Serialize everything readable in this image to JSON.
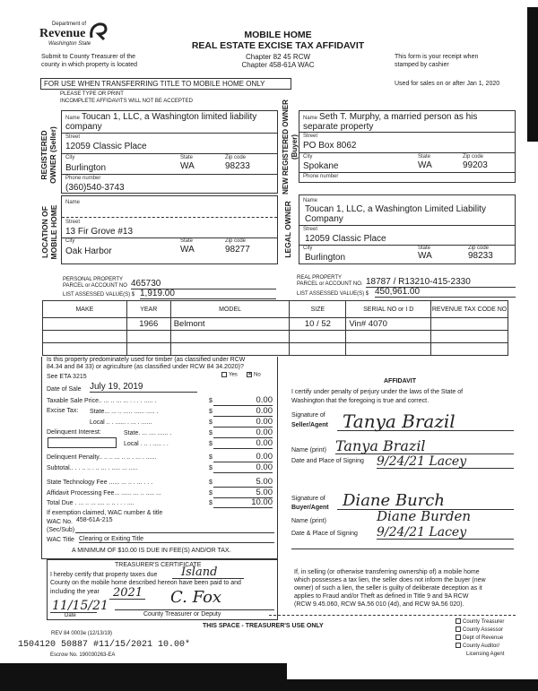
{
  "header": {
    "logo_dept": "Department of",
    "logo_name": "Revenue",
    "logo_state": "Washington State",
    "title_line1": "MOBILE HOME",
    "title_line2": "REAL ESTATE EXCISE TAX AFFIDAVIT",
    "chapter1": "Chapter 82 45 RCW",
    "chapter2": "Chapter 458-61A WAC",
    "submit_line1": "Submit to County Treasurer of the",
    "submit_line2": "county in which property is located",
    "receipt_line1": "This form is your receipt when",
    "receipt_line2": "stamped by cashier",
    "banner": "FOR USE WHEN TRANSFERRING TITLE TO MOBILE HOME ONLY",
    "used_for": "Used for sales on or after Jan  1, 2020",
    "type_print": "PLEASE TYPE OR PRINT",
    "incomplete": "INCOMPLETE AFFIDAVITS WILL NOT BE ACCEPTED"
  },
  "labels": {
    "name": "Name",
    "street": "Street",
    "city": "City",
    "state": "State",
    "zip": "Zip code",
    "phone": "Phone number"
  },
  "seller": {
    "section": "REGISTERED OWNER (Seller)",
    "name1": "Toucan 1, LLC, a Washington limited liability",
    "name2": "company",
    "street": "12059 Classic Place",
    "city": "Burlington",
    "state": "WA",
    "zip": "98233",
    "phone": "(360)540-3743"
  },
  "buyer": {
    "section": "NEW REGISTERED OWNER (Buyer)",
    "name1": "Seth T. Murphy, a married person as his",
    "name2": "separate property",
    "street": "PO Box 8062",
    "city": "Spokane",
    "state": "WA",
    "zip": "99203",
    "phone": ""
  },
  "location": {
    "section": "LOCATION OF MOBILE HOME",
    "name": "",
    "street": "13 Fir Grove #13",
    "city": "Oak Harbor",
    "state": "WA",
    "zip": "98277"
  },
  "legal_owner": {
    "section": "LEGAL OWNER",
    "name1": "Toucan 1, LLC, a Washington Limited Liability",
    "name2": "Company",
    "street": "12059 Classic Place",
    "city": "Burlington",
    "state": "WA",
    "zip": "98233"
  },
  "parcels": {
    "personal_label1": "PERSONAL PROPERTY",
    "personal_label2": "PARCEL or ACCOUNT NO",
    "personal_no": "465730",
    "assessed_label": "LIST ASSESSED VALUE(S)  $",
    "personal_value": "1,919.00",
    "real_label1": "REAL PROPERTY",
    "real_label2": "PARCEL or ACCOUNT NO.",
    "real_no": "18787 / R13210-415-2330",
    "real_value": "450,961.00"
  },
  "home_table": {
    "headers": [
      "MAKE",
      "YEAR",
      "MODEL",
      "SIZE",
      "SERIAL NO  or I D",
      "REVENUE TAX CODE NO"
    ],
    "rows": [
      [
        "",
        "1966",
        "Belmont",
        "10 / 52",
        "Vin# 4070",
        ""
      ],
      [
        "",
        "",
        "",
        "",
        "",
        ""
      ],
      [
        "",
        "",
        "",
        "",
        "",
        ""
      ]
    ]
  },
  "timber": {
    "q1": "Is this property predominately used for timber (as classified under RCW",
    "q2": "84.34 and 84 33) or agriculture (as classified under RCW 84 34.2020)?",
    "q3": "See ETA 3215",
    "yes": "Yes",
    "no": "No",
    "answer": "No"
  },
  "fees": {
    "date_label": "Date of Sale",
    "date_value": "July 19, 2019",
    "excise_label": "Excise Tax:",
    "delinquent_label": "Delinquent Interest:",
    "items": [
      {
        "label": "Taxable Sale Price.. ... .. ... ...   . . . . ..... .",
        "amount": "0.00"
      },
      {
        "label": "State... ... .. ..... ......  ..... .",
        "amount": "0.00"
      },
      {
        "label": "Local ..  . ...... . ...   . ......",
        "amount": "0.00"
      },
      {
        "label": "State. ... .... ...... .",
        "amount": "0.00"
      },
      {
        "label": "Local . ..  . .....   . .",
        "amount": "0.00"
      },
      {
        "label": "Delinquent Penalty.. .. .. ... .. .. . ... . ......",
        "amount": "0.00"
      },
      {
        "label": "Subtotal.. .  . .. .. . .. ...  . ..... ... .....",
        "amount": "0.00"
      },
      {
        "label": "State Technology Fee ...... ... .. . ... . . .",
        "amount": "5.00"
      },
      {
        "label": "Affidavit Processing Fee... ...... ... .. ..... ...",
        "amount": "5.00"
      },
      {
        "label": "Total Due . ...  .. ...  .... .. .. . . . ....",
        "amount": "10.00"
      }
    ],
    "currency": "$",
    "exemption": "If exemption claimed, WAC number & title",
    "wac_no_label": "WAC No.",
    "wac_no": "458-61A-215",
    "sec_sub": "(Sec/Sub)",
    "wac_title_label": "WAC Title",
    "wac_title": "Clearing or Exiting Title",
    "minimum": "A MINIMUM OF $10.00 IS DUE IN FEE(S) AND/OR TAX."
  },
  "affidavit": {
    "title": "AFFIDAVIT",
    "certify1": "I certify under penalty of perjury under the laws of the State of",
    "certify2": "Washington that the foregoing is true and correct.",
    "sig_seller_label1": "Signature of",
    "sig_seller_label2": "Seller/Agent",
    "seller_signature": "Tanya Brazil",
    "name_print_label": "Name (print)",
    "seller_name": "Tanya Brazil",
    "date_place_label": "Date and Place of Signing",
    "seller_date_place": "9/24/21  Lacey",
    "sig_buyer_label1": "Signature of",
    "sig_buyer_label2": "Buyer/Agent",
    "buyer_signature": "Diane Burch",
    "buyer_name_label": "Name (print)",
    "buyer_name": "Diane Burden",
    "buyer_date_label": "Date & Place of Signing",
    "buyer_date_place": "9/24/21  Lacey"
  },
  "treasurer": {
    "title": "TREASURER'S CERTIFICATE",
    "line1": "I hereby certify that property taxes due",
    "county": "Island",
    "line2": "County on the mobile home described hereon have been paid to and",
    "line3": "including the year",
    "year": "2021",
    "signature": "C. Fox",
    "date": "11/15/21",
    "date_label": "Date",
    "signer_label": "County Treasurer or Deputy"
  },
  "lien_notice": [
    "If, in selling (or otherwise transferring ownership of) a mobile home",
    "which possesses a tax lien, the seller does not inform the buyer (new",
    "owner) of such a lien, the seller is guilty of deliberate deception as it",
    "applies to Fraud and/or Theft as defined in Title 9 and 9A RCW",
    "(RCW 9.45.060, RCW 9A.56 010 (4d), and RCW 9A.56 020)."
  ],
  "footer": {
    "use_only": "THIS SPACE - TREASURER'S USE ONLY",
    "rev": "REV 84 0003e (12/13/19)",
    "stamp": "1504120 50887 #11/15/2021 10.00*",
    "escrow": "Escrow No.  190030263-EA",
    "distribution": [
      "County Treasurer",
      "County Assessor",
      "Dept  of Revenue",
      "County Auditor/",
      "Licensing Agent"
    ]
  }
}
